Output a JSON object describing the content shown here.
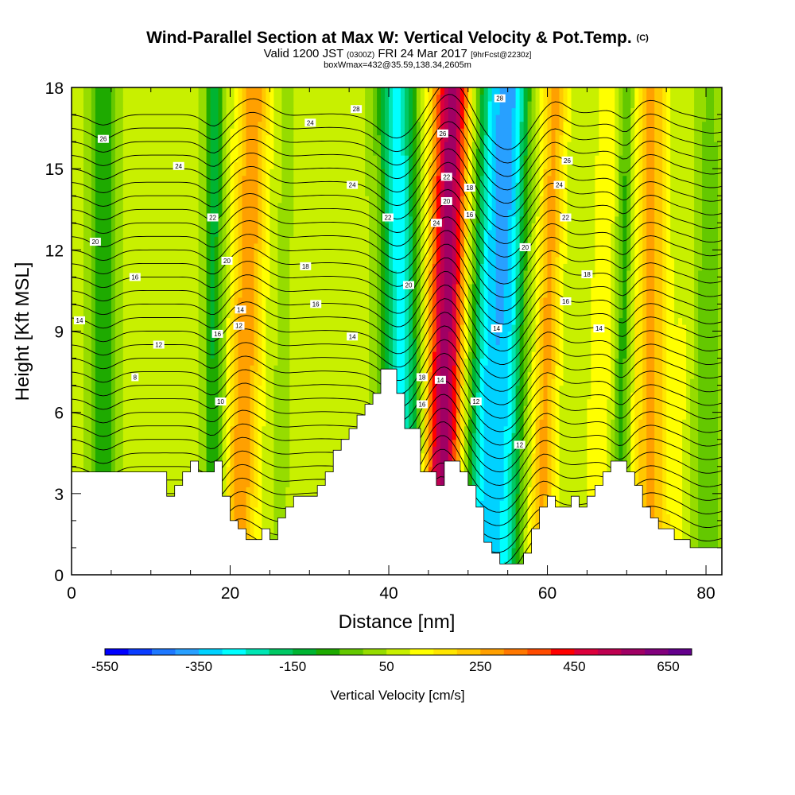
{
  "header": {
    "title": "Wind-Parallel Section at Max W: Vertical Velocity & Pot.Temp.",
    "title_tag": "(C)",
    "valid_a": "Valid 1200 JST",
    "valid_z": "(0300Z)",
    "valid_b": "FRI 24 Mar 2017",
    "valid_fcst": "[9hrFcst@2230z]",
    "box_info": "boxWmax=432@35.59,138.34,2605m"
  },
  "chart_data": {
    "type": "heatmap",
    "xlabel": "Distance [nm]",
    "ylabel": "Height [Kft MSL]",
    "xlim": [
      0,
      82
    ],
    "ylim": [
      0,
      18
    ],
    "x_ticks": [
      0,
      20,
      40,
      60,
      80
    ],
    "y_ticks": [
      0,
      3,
      6,
      9,
      12,
      15,
      18
    ],
    "colorbar": {
      "label": "Vertical Velocity [cm/s]",
      "tick_labels": [
        "-550",
        "-350",
        "-150",
        "50",
        "250",
        "450",
        "650"
      ],
      "colors": [
        "#0000ff",
        "#0a3cff",
        "#1e78ff",
        "#28a0ff",
        "#00d2ff",
        "#00ffff",
        "#00e6b4",
        "#00c864",
        "#00b432",
        "#1eaa00",
        "#64c800",
        "#96dc00",
        "#c8f000",
        "#ffff00",
        "#ffe600",
        "#ffc800",
        "#ffa000",
        "#ff7800",
        "#ff4b00",
        "#ff0000",
        "#dc003c",
        "#be0050",
        "#a00064",
        "#82007d",
        "#64008c"
      ]
    },
    "bands": [
      {
        "center_bottom": 4,
        "center_top": 4,
        "width": 3,
        "w": -150
      },
      {
        "center_bottom": 12,
        "center_top": 14,
        "width": 3,
        "w": 0
      },
      {
        "center_bottom": 18,
        "center_top": 18,
        "width": 2.5,
        "w": -175
      },
      {
        "center_bottom": 21,
        "center_top": 23,
        "width": 4,
        "w": 225
      },
      {
        "center_bottom": 26,
        "center_top": 27,
        "width": 3,
        "w": -25
      },
      {
        "center_bottom": 31,
        "center_top": 33,
        "width": 3,
        "w": 10
      },
      {
        "center_bottom": 42,
        "center_top": 41,
        "width": 4.5,
        "w": -340
      },
      {
        "center_bottom": 46.5,
        "center_top": 48,
        "width": 4.5,
        "w": 520
      },
      {
        "center_bottom": 52,
        "center_top": 54,
        "width": 5.5,
        "w": -380
      },
      {
        "center_bottom": 55,
        "center_top": 56,
        "width": 3.5,
        "w": -175
      },
      {
        "center_bottom": 59,
        "center_top": 61,
        "width": 3,
        "w": 200
      },
      {
        "center_bottom": 66,
        "center_top": 68,
        "width": 4,
        "w": 60
      },
      {
        "center_bottom": 69,
        "center_top": 70,
        "width": 2,
        "w": -150
      },
      {
        "center_bottom": 73,
        "center_top": 73,
        "width": 4,
        "w": 200
      },
      {
        "center_bottom": 76,
        "center_top": 79,
        "width": 3,
        "w": 50
      },
      {
        "center_bottom": 80,
        "center_top": 80,
        "width": 4,
        "w": -100
      }
    ],
    "terrain": [
      [
        0,
        3.8
      ],
      [
        12,
        3.8
      ],
      [
        12,
        3.3
      ],
      [
        12,
        2.9
      ],
      [
        13,
        2.9
      ],
      [
        13,
        3.3
      ],
      [
        14,
        3.3
      ],
      [
        14,
        3.8
      ],
      [
        15,
        3.8
      ],
      [
        15,
        4.2
      ],
      [
        16,
        4.2
      ],
      [
        16,
        3.8
      ],
      [
        18,
        3.8
      ],
      [
        18,
        4.2
      ],
      [
        19,
        4.2
      ],
      [
        19,
        2.9
      ],
      [
        20,
        2.9
      ],
      [
        20,
        2
      ],
      [
        21,
        2
      ],
      [
        21,
        1.7
      ],
      [
        22,
        1.7
      ],
      [
        22,
        1.3
      ],
      [
        24,
        1.3
      ],
      [
        24,
        1.7
      ],
      [
        25,
        1.7
      ],
      [
        25,
        1.3
      ],
      [
        26,
        1.3
      ],
      [
        26,
        2.1
      ],
      [
        27,
        2.1
      ],
      [
        27,
        2.5
      ],
      [
        28,
        2.5
      ],
      [
        28,
        2.9
      ],
      [
        31,
        2.9
      ],
      [
        31,
        3.3
      ],
      [
        32,
        3.3
      ],
      [
        32,
        3.8
      ],
      [
        33,
        3.8
      ],
      [
        33,
        4.6
      ],
      [
        34,
        4.6
      ],
      [
        34,
        5
      ],
      [
        35,
        5
      ],
      [
        35,
        5.4
      ],
      [
        36,
        5.4
      ],
      [
        36,
        5.9
      ],
      [
        37,
        5.9
      ],
      [
        37,
        6.3
      ],
      [
        38,
        6.3
      ],
      [
        38,
        6.7
      ],
      [
        39,
        6.7
      ],
      [
        39,
        7.6
      ],
      [
        41,
        7.6
      ],
      [
        41,
        6.7
      ],
      [
        42,
        6.7
      ],
      [
        42,
        5.4
      ],
      [
        44,
        5.4
      ],
      [
        44,
        3.8
      ],
      [
        46,
        3.8
      ],
      [
        46,
        3.3
      ],
      [
        47,
        3.3
      ],
      [
        47,
        4.2
      ],
      [
        49,
        4.2
      ],
      [
        49,
        3.8
      ],
      [
        50,
        3.8
      ],
      [
        50,
        3.3
      ],
      [
        51,
        3.3
      ],
      [
        51,
        2.5
      ],
      [
        52,
        2.5
      ],
      [
        52,
        1.2
      ],
      [
        53,
        1.2
      ],
      [
        53,
        0.8
      ],
      [
        54,
        0.8
      ],
      [
        54,
        0.4
      ],
      [
        57,
        0.4
      ],
      [
        57,
        0.8
      ],
      [
        58,
        0.8
      ],
      [
        58,
        1.7
      ],
      [
        59,
        1.7
      ],
      [
        59,
        2.5
      ],
      [
        60,
        2.5
      ],
      [
        60,
        2.9
      ],
      [
        61,
        2.9
      ],
      [
        61,
        2.5
      ],
      [
        63,
        2.5
      ],
      [
        63,
        2.9
      ],
      [
        64,
        2.9
      ],
      [
        64,
        2.5
      ],
      [
        65,
        2.5
      ],
      [
        65,
        2.9
      ],
      [
        66,
        2.9
      ],
      [
        66,
        3.3
      ],
      [
        67,
        3.3
      ],
      [
        67,
        3.8
      ],
      [
        68,
        3.8
      ],
      [
        68,
        4.2
      ],
      [
        70,
        4.2
      ],
      [
        70,
        3.8
      ],
      [
        71,
        3.8
      ],
      [
        71,
        3.3
      ],
      [
        72,
        3.3
      ],
      [
        72,
        2.5
      ],
      [
        73,
        2.5
      ],
      [
        73,
        2.1
      ],
      [
        74,
        2.1
      ],
      [
        74,
        1.7
      ],
      [
        76,
        1.7
      ],
      [
        76,
        1.3
      ],
      [
        78,
        1.3
      ],
      [
        78,
        1
      ],
      [
        79,
        1
      ],
      [
        79,
        1
      ],
      [
        82,
        1
      ]
    ],
    "contour_levels": [
      4,
      5,
      6,
      7,
      8,
      9,
      10,
      11,
      12,
      13,
      14,
      15,
      16,
      17,
      18,
      19,
      20,
      21,
      22,
      23,
      24,
      25,
      26,
      27,
      28,
      29,
      30,
      31,
      32,
      33,
      34,
      35,
      36,
      37,
      38
    ],
    "contour_labels": [
      {
        "x": 1,
        "y": 9.4,
        "text": "14"
      },
      {
        "x": 3,
        "y": 12.3,
        "text": "20"
      },
      {
        "x": 4,
        "y": 16.1,
        "text": "26"
      },
      {
        "x": 8,
        "y": 11.0,
        "text": "16"
      },
      {
        "x": 8,
        "y": 7.3,
        "text": "8"
      },
      {
        "x": 11,
        "y": 8.5,
        "text": "12"
      },
      {
        "x": 13.5,
        "y": 15.1,
        "text": "24"
      },
      {
        "x": 17.8,
        "y": 13.2,
        "text": "22"
      },
      {
        "x": 18.4,
        "y": 8.9,
        "text": "16"
      },
      {
        "x": 18.8,
        "y": 6.4,
        "text": "10"
      },
      {
        "x": 19.6,
        "y": 11.6,
        "text": "20"
      },
      {
        "x": 21.1,
        "y": 9.2,
        "text": "12"
      },
      {
        "x": 21.3,
        "y": 9.8,
        "text": "14"
      },
      {
        "x": 29.5,
        "y": 11.4,
        "text": "18"
      },
      {
        "x": 30.8,
        "y": 10.0,
        "text": "16"
      },
      {
        "x": 30.1,
        "y": 16.7,
        "text": "24"
      },
      {
        "x": 35.4,
        "y": 8.8,
        "text": "14"
      },
      {
        "x": 35.4,
        "y": 14.4,
        "text": "24"
      },
      {
        "x": 35.9,
        "y": 17.2,
        "text": "28"
      },
      {
        "x": 39.9,
        "y": 13.2,
        "text": "22"
      },
      {
        "x": 42.5,
        "y": 10.7,
        "text": "20"
      },
      {
        "x": 44.2,
        "y": 7.3,
        "text": "18"
      },
      {
        "x": 44.2,
        "y": 6.3,
        "text": "16"
      },
      {
        "x": 46.5,
        "y": 7.2,
        "text": "14"
      },
      {
        "x": 46.0,
        "y": 13.0,
        "text": "24"
      },
      {
        "x": 46.8,
        "y": 16.3,
        "text": "26"
      },
      {
        "x": 47.3,
        "y": 14.7,
        "text": "22"
      },
      {
        "x": 47.3,
        "y": 13.8,
        "text": "20"
      },
      {
        "x": 50.2,
        "y": 14.3,
        "text": "18"
      },
      {
        "x": 50.2,
        "y": 13.3,
        "text": "16"
      },
      {
        "x": 51.0,
        "y": 6.4,
        "text": "12"
      },
      {
        "x": 53.6,
        "y": 9.1,
        "text": "14"
      },
      {
        "x": 54.0,
        "y": 17.6,
        "text": "28"
      },
      {
        "x": 56.5,
        "y": 4.8,
        "text": "12"
      },
      {
        "x": 57.2,
        "y": 12.1,
        "text": "20"
      },
      {
        "x": 61.5,
        "y": 14.4,
        "text": "24"
      },
      {
        "x": 62.3,
        "y": 13.2,
        "text": "22"
      },
      {
        "x": 62.3,
        "y": 10.1,
        "text": "16"
      },
      {
        "x": 62.5,
        "y": 15.3,
        "text": "26"
      },
      {
        "x": 65.0,
        "y": 11.1,
        "text": "18"
      },
      {
        "x": 66.5,
        "y": 9.1,
        "text": "14"
      }
    ]
  }
}
